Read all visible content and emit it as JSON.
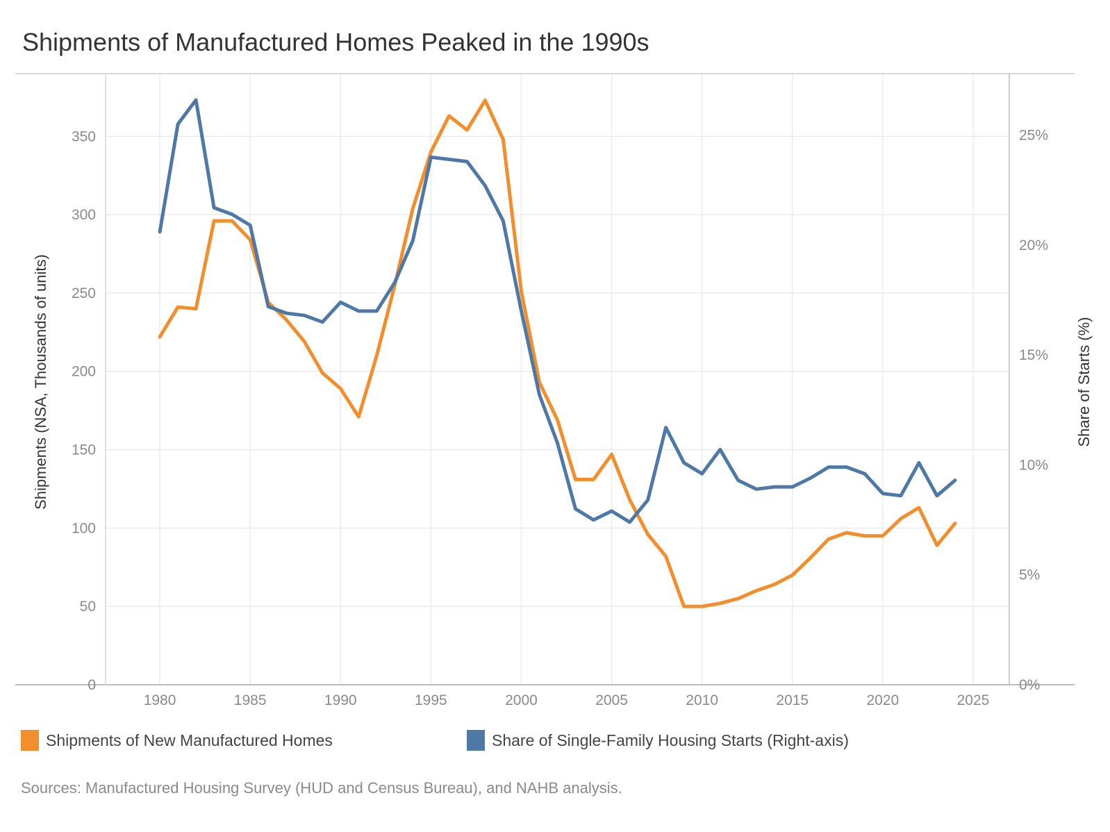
{
  "chart_data": {
    "type": "line",
    "title": "Shipments of Manufactured Homes Peaked in the 1990s",
    "ylabel": "Shipments (NSA, Thousands of units)",
    "y2label": "Share of Starts (%)",
    "x_ticks": [
      "1980",
      "1985",
      "1990",
      "1995",
      "2000",
      "2005",
      "2010",
      "2015",
      "2020",
      "2025"
    ],
    "y_ticks": [
      "0",
      "50",
      "100",
      "150",
      "200",
      "250",
      "300",
      "350"
    ],
    "y2_ticks": [
      "0%",
      "5%",
      "10%",
      "15%",
      "20%",
      "25%"
    ],
    "xlim": [
      1977,
      2027
    ],
    "ylim": [
      0,
      390
    ],
    "y2lim": [
      0,
      27.8
    ],
    "grid": true,
    "legend_position": "bottom",
    "x": [
      1980,
      1981,
      1982,
      1983,
      1984,
      1985,
      1986,
      1987,
      1988,
      1989,
      1990,
      1991,
      1992,
      1993,
      1994,
      1995,
      1996,
      1997,
      1998,
      1999,
      2000,
      2001,
      2002,
      2003,
      2004,
      2005,
      2006,
      2007,
      2008,
      2009,
      2010,
      2011,
      2012,
      2013,
      2014,
      2015,
      2016,
      2017,
      2018,
      2019,
      2020,
      2021,
      2022,
      2023,
      2024
    ],
    "series": [
      {
        "name": "Shipments of New Manufactured Homes",
        "axis": "left",
        "color": "#f28e2b",
        "values": [
          222,
          241,
          240,
          296,
          296,
          284,
          244,
          233,
          219,
          199,
          189,
          171,
          210,
          255,
          304,
          340,
          363,
          354,
          373,
          348,
          251,
          193,
          169,
          131,
          131,
          147,
          118,
          96,
          82,
          50,
          50,
          52,
          55,
          60,
          64,
          70,
          81,
          93,
          97,
          95,
          95,
          106,
          113,
          89,
          103
        ]
      },
      {
        "name": "Share of Single-Family Housing Starts (Right-axis)",
        "axis": "right",
        "color": "#4e79a7",
        "values": [
          20.6,
          25.5,
          26.6,
          21.7,
          21.4,
          20.9,
          17.2,
          16.9,
          16.8,
          16.5,
          17.4,
          17.0,
          17.0,
          18.3,
          20.2,
          24.0,
          23.9,
          23.8,
          22.7,
          21.1,
          17.0,
          13.2,
          11.0,
          8.0,
          7.5,
          7.9,
          7.4,
          8.4,
          11.7,
          10.1,
          9.6,
          10.7,
          9.3,
          8.9,
          9.0,
          9.0,
          9.4,
          9.9,
          9.9,
          9.6,
          8.7,
          8.6,
          10.1,
          8.6,
          9.3
        ]
      }
    ]
  },
  "source_note": "Sources: Manufactured Housing Survey (HUD and Census Bureau), and NAHB analysis."
}
